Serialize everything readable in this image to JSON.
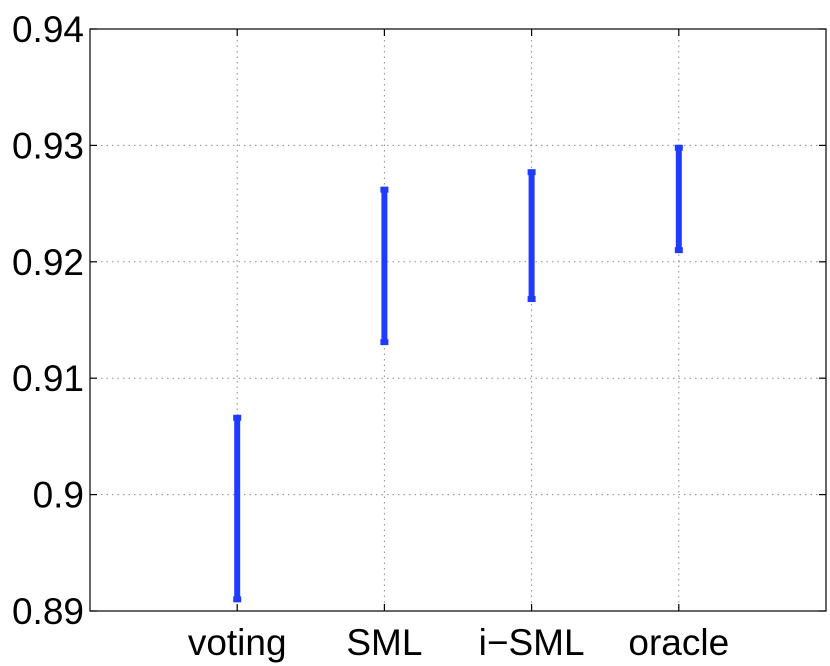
{
  "chart_data": {
    "type": "errorbar",
    "categories": [
      "voting",
      "SML",
      "i−SML",
      "oracle"
    ],
    "series": [
      {
        "low": [
          0.891,
          0.9131,
          0.9168,
          0.921
        ],
        "high": [
          0.9066,
          0.9262,
          0.9277,
          0.9298
        ],
        "color": "#1f3bff"
      }
    ],
    "ylim": [
      0.89,
      0.94
    ],
    "yticks": [
      0.89,
      0.9,
      0.91,
      0.92,
      0.93,
      0.94
    ],
    "ytick_labels": [
      "0.89",
      "0.9",
      "0.91",
      "0.92",
      "0.93",
      "0.94"
    ],
    "xlim": [
      0,
      5
    ],
    "grid": true,
    "title": "",
    "xlabel": "",
    "ylabel": ""
  }
}
